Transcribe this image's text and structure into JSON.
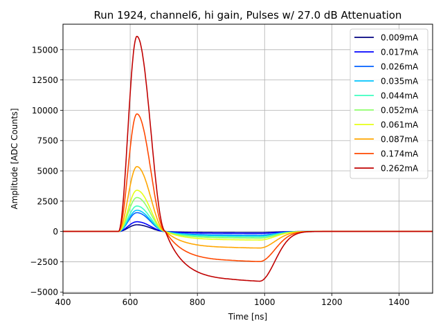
{
  "chart_data": {
    "type": "line",
    "title": "Run 1924, channel6, hi gain, Pulses w/ 27.0 dB Attenuation",
    "xlabel": "Time [ns]",
    "ylabel": "Amplitude [ADC Counts]",
    "xlim": [
      400,
      1500
    ],
    "ylim": [
      -5100,
      17100
    ],
    "grid": true,
    "legend_position": "top-right",
    "x_ticks": [
      400,
      600,
      800,
      1000,
      1200,
      1400
    ],
    "y_ticks": [
      -5000,
      -2500,
      0,
      2500,
      5000,
      7500,
      10000,
      12500,
      15000
    ],
    "x_tick_labels": [
      "400",
      "600",
      "800",
      "1000",
      "1200",
      "1400"
    ],
    "y_tick_labels": [
      "−5000",
      "−2500",
      "0",
      "2500",
      "5000",
      "7500",
      "10000",
      "12500",
      "15000"
    ],
    "pulse_shape": {
      "start_ns": 565,
      "peak_ns": 620,
      "zero_cross_ns": 705,
      "trough_plateau_ns": 900,
      "trough_end_ns": 985,
      "recovery_ns": 1200
    },
    "series": [
      {
        "name": "0.009mA",
        "color": "#00007f",
        "peak": 550,
        "trough": -100
      },
      {
        "name": "0.017mA",
        "color": "#0000ff",
        "peak": 800,
        "trough": -150
      },
      {
        "name": "0.026mA",
        "color": "#0060ff",
        "peak": 1550,
        "trough": -300
      },
      {
        "name": "0.035mA",
        "color": "#00c4ff",
        "peak": 1750,
        "trough": -350
      },
      {
        "name": "0.044mA",
        "color": "#3dffc0",
        "peak": 2100,
        "trough": -450
      },
      {
        "name": "0.052mA",
        "color": "#8dff6a",
        "peak": 2800,
        "trough": -550
      },
      {
        "name": "0.061mA",
        "color": "#e6ff16",
        "peak": 3400,
        "trough": -700
      },
      {
        "name": "0.087mA",
        "color": "#ffa600",
        "peak": 5350,
        "trough": -1350
      },
      {
        "name": "0.174mA",
        "color": "#ff4800",
        "peak": 9700,
        "trough": -2450
      },
      {
        "name": "0.262mA",
        "color": "#c00000",
        "peak": 16100,
        "trough": -4050
      }
    ]
  }
}
